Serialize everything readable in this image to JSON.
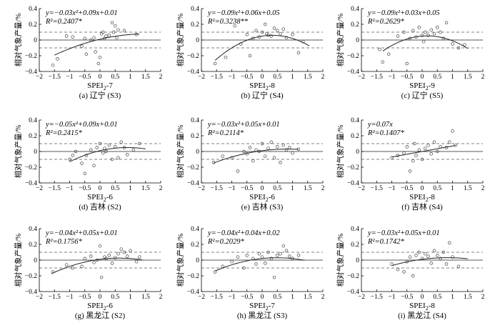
{
  "chart_data": [
    {
      "type": "scatter",
      "caption": "(a) 辽宁 (S3)",
      "xlabel": "SPEI",
      "xlabel_sub": "2",
      "xlabel_suffix": "-7",
      "ylabel": "相对气象产量/%",
      "equation": "y=−0.03x²+0.09x+0.01",
      "r2": "R²=0.2407*",
      "coef": [
        -0.03,
        0.09,
        0.01
      ],
      "fit_range": [
        -1.5,
        1.3
      ],
      "xlim": [
        -2,
        2
      ],
      "ylim": [
        -0.4,
        0.4
      ],
      "xticks": [
        "−2",
        "−1.5",
        "−1",
        "−0.5",
        "0",
        "0.5",
        "1",
        "1.5",
        "2"
      ],
      "yticks": [
        "−0.4",
        "−0.2",
        "0",
        "0.2",
        "0.4"
      ],
      "ref_lines": [
        0.1,
        -0.1
      ],
      "points": [
        [
          -1.55,
          -0.32
        ],
        [
          -1.4,
          -0.24
        ],
        [
          -1.1,
          0.05
        ],
        [
          -0.9,
          0.04
        ],
        [
          -0.6,
          -0.08
        ],
        [
          -0.5,
          0.02
        ],
        [
          -0.45,
          -0.18
        ],
        [
          -0.3,
          0.0
        ],
        [
          -0.2,
          0.03
        ],
        [
          -0.15,
          -0.15
        ],
        [
          -0.05,
          -0.3
        ],
        [
          0.0,
          -0.22
        ],
        [
          0.05,
          0.08
        ],
        [
          0.1,
          0.1
        ],
        [
          0.15,
          0.02
        ],
        [
          0.2,
          0.05
        ],
        [
          0.3,
          0.06
        ],
        [
          0.4,
          0.22
        ],
        [
          0.45,
          0.1
        ],
        [
          0.5,
          0.18
        ],
        [
          0.55,
          0.03
        ],
        [
          0.6,
          0.13
        ],
        [
          0.8,
          0.12
        ],
        [
          1.2,
          0.07
        ]
      ]
    },
    {
      "type": "scatter",
      "caption": "(b) 辽宁 (S4)",
      "xlabel": "SPEI",
      "xlabel_sub": "2",
      "xlabel_suffix": "-8",
      "ylabel": "相对气象产量/%",
      "equation": "y=−0.09x²+0.06x+0.05",
      "r2": "R²=0.3238**",
      "coef": [
        -0.09,
        0.06,
        0.05
      ],
      "fit_range": [
        -1.55,
        1.55
      ],
      "xlim": [
        -2,
        2
      ],
      "ylim": [
        -0.4,
        0.4
      ],
      "xticks": [
        "−2",
        "−1.5",
        "−1",
        "−0.5",
        "0",
        "0.5",
        "1",
        "1.5",
        "2"
      ],
      "yticks": [
        "−0.4",
        "−0.2",
        "0",
        "0.2",
        "0.4"
      ],
      "ref_lines": [
        0.1,
        -0.1
      ],
      "points": [
        [
          -1.55,
          -0.3
        ],
        [
          -1.2,
          -0.22
        ],
        [
          -0.9,
          0.18
        ],
        [
          -0.7,
          -0.05
        ],
        [
          -0.5,
          0.07
        ],
        [
          -0.4,
          -0.2
        ],
        [
          -0.3,
          0.02
        ],
        [
          -0.2,
          0.12
        ],
        [
          -0.1,
          0.04
        ],
        [
          0.0,
          0.1
        ],
        [
          0.1,
          0.2
        ],
        [
          0.15,
          0.08
        ],
        [
          0.2,
          0.06
        ],
        [
          0.3,
          0.05
        ],
        [
          0.4,
          0.15
        ],
        [
          0.5,
          0.12
        ],
        [
          0.6,
          0.08
        ],
        [
          0.7,
          0.14
        ],
        [
          0.8,
          0.03
        ],
        [
          1.0,
          0.07
        ],
        [
          1.2,
          -0.16
        ],
        [
          1.35,
          -0.02
        ]
      ]
    },
    {
      "type": "scatter",
      "caption": "(c) 辽宁 (S5)",
      "xlabel": "SPEI",
      "xlabel_sub": "2",
      "xlabel_suffix": "-9",
      "ylabel": "相对气象产量/%",
      "equation": "y=−0.09x²+0.03x+0.05",
      "r2": "R²=0.2629*",
      "coef": [
        -0.09,
        0.03,
        0.05
      ],
      "fit_range": [
        -1.3,
        1.5
      ],
      "xlim": [
        -2,
        2
      ],
      "ylim": [
        -0.4,
        0.4
      ],
      "xticks": [
        "−2",
        "−1.5",
        "−1",
        "−0.5",
        "0",
        "0.5",
        "1",
        "1.5",
        "2"
      ],
      "yticks": [
        "−0.4",
        "−0.2",
        "0",
        "0.2",
        "0.4"
      ],
      "ref_lines": [
        0.1,
        -0.1
      ],
      "points": [
        [
          -1.4,
          -0.12
        ],
        [
          -1.3,
          -0.28
        ],
        [
          -1.1,
          -0.18
        ],
        [
          -0.8,
          0.05
        ],
        [
          -0.6,
          0.1
        ],
        [
          -0.5,
          -0.3
        ],
        [
          -0.4,
          0.02
        ],
        [
          -0.3,
          0.12
        ],
        [
          -0.2,
          0.04
        ],
        [
          -0.1,
          0.16
        ],
        [
          0.0,
          0.06
        ],
        [
          0.05,
          -0.02
        ],
        [
          0.1,
          0.1
        ],
        [
          0.2,
          0.06
        ],
        [
          0.3,
          0.13
        ],
        [
          0.4,
          0.08
        ],
        [
          0.5,
          0.16
        ],
        [
          0.6,
          0.1
        ],
        [
          0.7,
          0.02
        ],
        [
          0.8,
          0.22
        ],
        [
          1.0,
          -0.05
        ],
        [
          1.2,
          -0.1
        ],
        [
          1.4,
          -0.06
        ]
      ]
    },
    {
      "type": "scatter",
      "caption": "(d) 吉林 (S2)",
      "xlabel": "SPEI",
      "xlabel_sub": "2",
      "xlabel_suffix": "-6",
      "ylabel": "相对气象产量/%",
      "equation": "y=−0.05x²+0.09x+0.01",
      "r2": "R²=0.2415*",
      "coef": [
        -0.05,
        0.09,
        0.01
      ],
      "fit_range": [
        -1.0,
        1.5
      ],
      "xlim": [
        -2,
        2
      ],
      "ylim": [
        -0.4,
        0.4
      ],
      "xticks": [
        "−2",
        "−1.5",
        "−1",
        "−0.5",
        "0",
        "0.5",
        "1",
        "1.5",
        "2"
      ],
      "yticks": [
        "−0.4",
        "−0.2",
        "0",
        "0.2",
        "0.4"
      ],
      "ref_lines": [
        0.1,
        -0.1
      ],
      "points": [
        [
          -1.0,
          -0.1
        ],
        [
          -0.9,
          -0.05
        ],
        [
          -0.8,
          0.0
        ],
        [
          -0.6,
          -0.15
        ],
        [
          -0.5,
          -0.28
        ],
        [
          -0.45,
          -0.05
        ],
        [
          -0.3,
          0.02
        ],
        [
          -0.2,
          -0.18
        ],
        [
          -0.1,
          0.05
        ],
        [
          0.0,
          0.1
        ],
        [
          0.1,
          -0.02
        ],
        [
          0.15,
          0.04
        ],
        [
          0.2,
          0.0
        ],
        [
          0.3,
          0.08
        ],
        [
          0.4,
          -0.1
        ],
        [
          0.5,
          0.06
        ],
        [
          0.6,
          -0.08
        ],
        [
          0.7,
          0.12
        ],
        [
          0.8,
          0.05
        ],
        [
          0.9,
          -0.04
        ],
        [
          1.1,
          0.02
        ],
        [
          1.3,
          0.1
        ]
      ]
    },
    {
      "type": "scatter",
      "caption": "(e) 吉林 (S3)",
      "xlabel": "SPEI",
      "xlabel_sub": "2",
      "xlabel_suffix": "-6",
      "ylabel": "相对气象产量/%",
      "equation": "y=−0.03x²+0.05x+0.01",
      "r2": "R²=0.2114*",
      "coef": [
        -0.03,
        0.05,
        0.01
      ],
      "fit_range": [
        -1.6,
        1.2
      ],
      "xlim": [
        -2,
        2
      ],
      "ylim": [
        -0.4,
        0.4
      ],
      "xticks": [
        "−2",
        "−1.5",
        "−1",
        "−0.5",
        "0",
        "0.5",
        "1",
        "1.5",
        "2"
      ],
      "yticks": [
        "−0.4",
        "−0.2",
        "0",
        "0.2",
        "0.4"
      ],
      "ref_lines": [
        0.1,
        -0.1
      ],
      "points": [
        [
          -1.6,
          -0.14
        ],
        [
          -1.3,
          -0.06
        ],
        [
          -1.0,
          -0.08
        ],
        [
          -0.8,
          -0.25
        ],
        [
          -0.6,
          0.0
        ],
        [
          -0.5,
          -0.03
        ],
        [
          -0.4,
          0.05
        ],
        [
          -0.3,
          -0.12
        ],
        [
          -0.2,
          0.02
        ],
        [
          -0.1,
          0.0
        ],
        [
          0.0,
          0.1
        ],
        [
          0.1,
          -0.06
        ],
        [
          0.2,
          0.04
        ],
        [
          0.3,
          0.12
        ],
        [
          0.4,
          -0.08
        ],
        [
          0.5,
          0.06
        ],
        [
          0.6,
          -0.14
        ],
        [
          0.7,
          0.08
        ],
        [
          0.8,
          0.02
        ],
        [
          0.9,
          0.05
        ],
        [
          1.0,
          -0.02
        ],
        [
          1.2,
          0.03
        ]
      ]
    },
    {
      "type": "scatter",
      "caption": "(f) 吉林 (S4)",
      "xlabel": "SPEI",
      "xlabel_sub": "2",
      "xlabel_suffix": "-8",
      "ylabel": "相对气象产量/%",
      "equation": "y=0.07x",
      "r2": "R²=0.1407*",
      "coef": [
        0,
        0.07,
        0
      ],
      "fit_range": [
        -1.0,
        1.1
      ],
      "xlim": [
        -2,
        2
      ],
      "ylim": [
        -0.4,
        0.4
      ],
      "xticks": [
        "−2",
        "−1.5",
        "−1",
        "−0.5",
        "0",
        "0.5",
        "1",
        "1.5",
        "2"
      ],
      "yticks": [
        "−0.4",
        "−0.2",
        "0",
        "0.2",
        "0.4"
      ],
      "ref_lines": [
        0.1,
        -0.1
      ],
      "points": [
        [
          -1.0,
          -0.08
        ],
        [
          -0.8,
          -0.05
        ],
        [
          -0.6,
          -0.02
        ],
        [
          -0.5,
          0.06
        ],
        [
          -0.4,
          -0.25
        ],
        [
          -0.3,
          -0.12
        ],
        [
          -0.25,
          0.1
        ],
        [
          -0.2,
          -0.05
        ],
        [
          -0.1,
          0.02
        ],
        [
          0.0,
          -0.1
        ],
        [
          0.1,
          0.04
        ],
        [
          0.2,
          0.08
        ],
        [
          0.3,
          -0.03
        ],
        [
          0.4,
          0.12
        ],
        [
          0.5,
          0.0
        ],
        [
          0.6,
          0.06
        ],
        [
          0.8,
          0.05
        ],
        [
          0.9,
          0.12
        ],
        [
          1.0,
          0.26
        ],
        [
          1.1,
          0.08
        ]
      ]
    },
    {
      "type": "scatter",
      "caption": "(g) 黑龙江 (S2)",
      "xlabel": "SPEI",
      "xlabel_sub": "2",
      "xlabel_suffix": "-6",
      "ylabel": "相对气象产量/%",
      "equation": "y=−0.04x²+0.05x+0.01",
      "r2": "R²=0.1756*",
      "coef": [
        -0.04,
        0.05,
        0.01
      ],
      "fit_range": [
        -1.6,
        1.4
      ],
      "xlim": [
        -2,
        2
      ],
      "ylim": [
        -0.4,
        0.4
      ],
      "xticks": [
        "−2",
        "−1.5",
        "−1",
        "−0.5",
        "0",
        "0.5",
        "1",
        "1.5",
        "2"
      ],
      "yticks": [
        "−0.4",
        "−0.2",
        "0",
        "0.2",
        "0.4"
      ],
      "ref_lines": [
        0.1,
        -0.1
      ],
      "points": [
        [
          -1.55,
          -0.15
        ],
        [
          -1.1,
          -0.06
        ],
        [
          -0.9,
          -0.1
        ],
        [
          -0.6,
          -0.08
        ],
        [
          -0.5,
          0.02
        ],
        [
          -0.3,
          0.05
        ],
        [
          -0.2,
          -0.03
        ],
        [
          -0.1,
          0.0
        ],
        [
          0.0,
          0.18
        ],
        [
          0.05,
          -0.22
        ],
        [
          0.15,
          0.04
        ],
        [
          0.2,
          0.02
        ],
        [
          0.3,
          0.06
        ],
        [
          0.4,
          -0.04
        ],
        [
          0.5,
          0.03
        ],
        [
          0.6,
          0.08
        ],
        [
          0.7,
          0.14
        ],
        [
          0.8,
          0.1
        ],
        [
          0.9,
          0.05
        ],
        [
          1.0,
          0.12
        ],
        [
          1.2,
          -0.02
        ],
        [
          1.3,
          0.04
        ]
      ]
    },
    {
      "type": "scatter",
      "caption": "(h) 黑龙江 (S3)",
      "xlabel": "SPEI",
      "xlabel_sub": "2",
      "xlabel_suffix": "-7",
      "ylabel": "相对气象产量/%",
      "equation": "y=−0.04x²+0.04x+0.02",
      "r2": "R²=0.2029*",
      "coef": [
        -0.04,
        0.04,
        0.02
      ],
      "fit_range": [
        -1.55,
        1.4
      ],
      "xlim": [
        -2,
        2
      ],
      "ylim": [
        -0.4,
        0.4
      ],
      "xticks": [
        "−2",
        "−1.5",
        "−1",
        "−0.5",
        "0",
        "0.5",
        "1",
        "1.5",
        "2"
      ],
      "yticks": [
        "−0.4",
        "−0.2",
        "0",
        "0.2",
        "0.4"
      ],
      "ref_lines": [
        0.1,
        -0.1
      ],
      "points": [
        [
          -1.55,
          -0.15
        ],
        [
          -1.3,
          -0.08
        ],
        [
          -1.0,
          -0.02
        ],
        [
          -0.8,
          0.04
        ],
        [
          -0.6,
          -0.1
        ],
        [
          -0.5,
          0.06
        ],
        [
          -0.3,
          0.02
        ],
        [
          -0.2,
          -0.05
        ],
        [
          -0.1,
          0.08
        ],
        [
          0.0,
          0.04
        ],
        [
          0.1,
          -0.04
        ],
        [
          0.2,
          0.1
        ],
        [
          0.3,
          0.02
        ],
        [
          0.4,
          -0.22
        ],
        [
          0.5,
          0.06
        ],
        [
          0.6,
          0.08
        ],
        [
          0.7,
          0.18
        ],
        [
          0.8,
          0.12
        ],
        [
          0.9,
          0.05
        ],
        [
          1.0,
          0.02
        ],
        [
          1.2,
          0.06
        ]
      ]
    },
    {
      "type": "scatter",
      "caption": "(i) 黑龙江 (S4)",
      "xlabel": "SPEI",
      "xlabel_sub": "2",
      "xlabel_suffix": "-8",
      "ylabel": "相对气象产量/%",
      "equation": "y=−0.03x²+0.05x+0.01",
      "r2": "R²=0.1742*",
      "coef": [
        -0.03,
        0.05,
        0.01
      ],
      "fit_range": [
        -1.0,
        1.5
      ],
      "xlim": [
        -2,
        2
      ],
      "ylim": [
        -0.4,
        0.4
      ],
      "xticks": [
        "−2",
        "−1.5",
        "−1",
        "−0.5",
        "0",
        "0.5",
        "1",
        "1.5",
        "2"
      ],
      "yticks": [
        "−0.4",
        "−0.2",
        "0",
        "0.2",
        "0.4"
      ],
      "ref_lines": [
        0.1,
        -0.1
      ],
      "points": [
        [
          -1.0,
          -0.05
        ],
        [
          -0.8,
          -0.12
        ],
        [
          -0.6,
          -0.15
        ],
        [
          -0.5,
          -0.02
        ],
        [
          -0.4,
          0.04
        ],
        [
          -0.3,
          -0.2
        ],
        [
          -0.2,
          0.06
        ],
        [
          -0.1,
          0.1
        ],
        [
          0.0,
          0.02
        ],
        [
          0.1,
          0.08
        ],
        [
          0.2,
          0.05
        ],
        [
          0.3,
          -0.04
        ],
        [
          0.4,
          0.12
        ],
        [
          0.5,
          0.06
        ],
        [
          0.6,
          0.02
        ],
        [
          0.7,
          0.1
        ],
        [
          0.8,
          -0.05
        ],
        [
          0.9,
          0.22
        ],
        [
          1.0,
          0.04
        ],
        [
          1.2,
          -0.08
        ]
      ]
    }
  ]
}
